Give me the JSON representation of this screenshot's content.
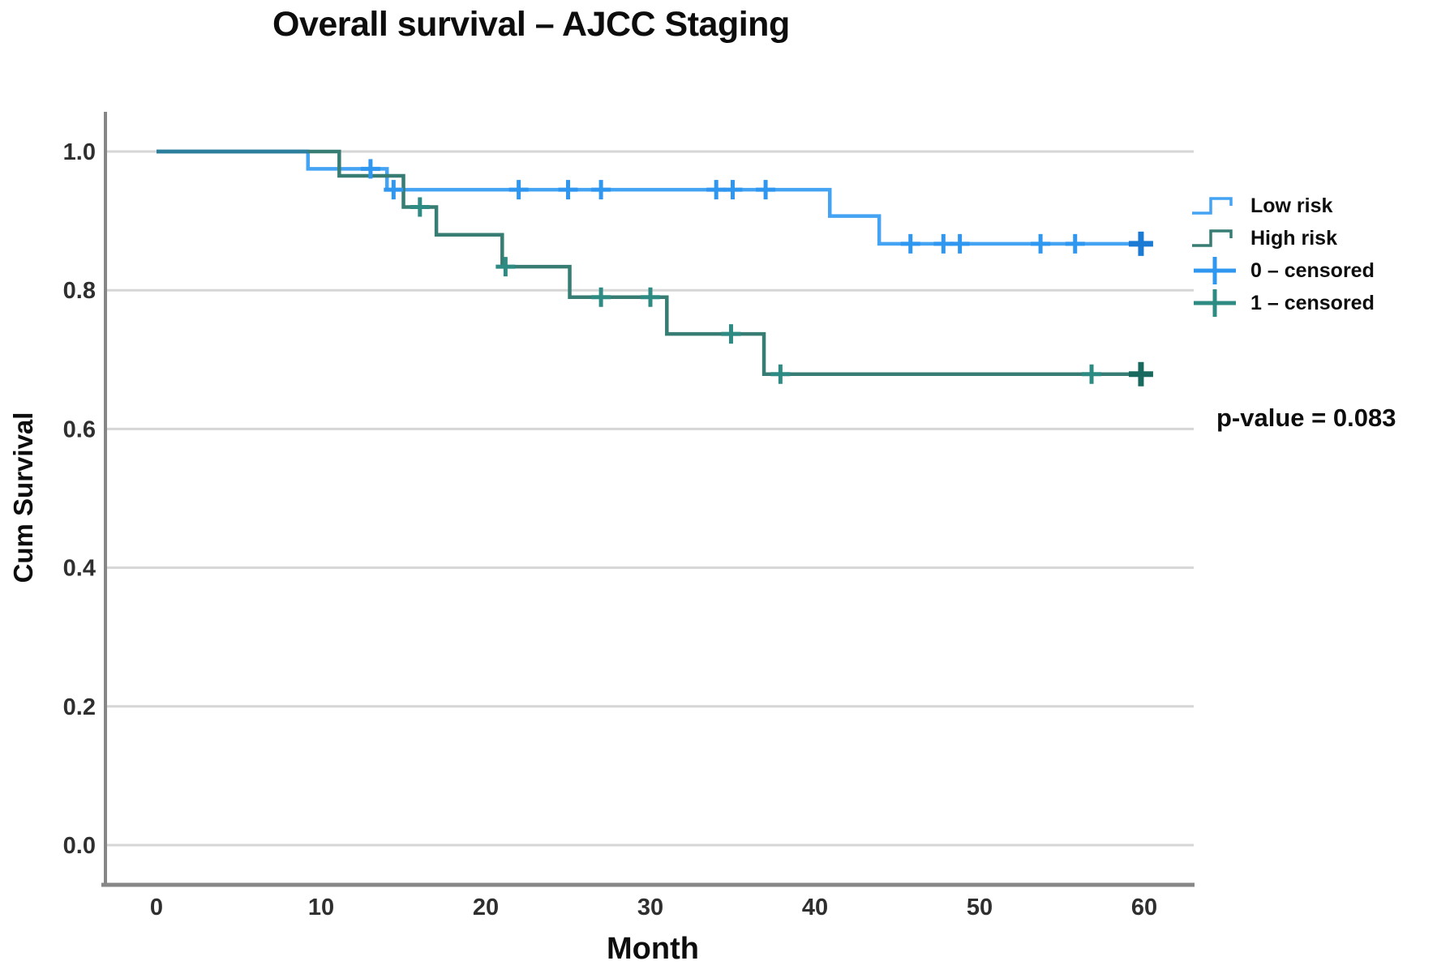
{
  "title": "Overall survival – AJCC Staging",
  "p_value_label": "p-value = 0.083",
  "axes": {
    "x_title": "Month",
    "y_title": "Cum Survival"
  },
  "legend": {
    "items": [
      {
        "label": "Low risk",
        "marker": "step-line",
        "color": "#44a3f2"
      },
      {
        "label": "High risk",
        "marker": "step-line",
        "color": "#377d74"
      },
      {
        "label": "0 – censored",
        "marker": "plus-cross",
        "color": "#2f97ef"
      },
      {
        "label": "1 – censored",
        "marker": "plus-cross",
        "color": "#2d8b84"
      }
    ]
  },
  "chart_data": {
    "type": "line",
    "subtype": "kaplan-meier-step",
    "title": "Overall survival – AJCC Staging",
    "xlabel": "Month",
    "ylabel": "Cum Survival",
    "xlim": [
      -3,
      63
    ],
    "ylim": [
      -0.06,
      1.06
    ],
    "x_ticks": [
      0,
      10,
      20,
      30,
      40,
      50,
      60
    ],
    "y_ticks": [
      0.0,
      0.2,
      0.4,
      0.6,
      0.8,
      1.0
    ],
    "y_tick_labels": [
      "0.0",
      "0.2",
      "0.4",
      "0.6",
      "0.8",
      "1.0"
    ],
    "grid": "horizontal",
    "legend_position": "right",
    "annotation": "p-value = 0.083",
    "style": {
      "grid_color": "#d6d6d6",
      "axis_color": "#868686",
      "tick_color": "#2f2f2f"
    },
    "series": [
      {
        "name": "Low risk",
        "color": "#44a3f2",
        "censor_color": "#2f97ef",
        "censor_final_color": "#1a7ad4",
        "steps": [
          [
            0,
            1.0
          ],
          [
            9.2,
            0.975
          ],
          [
            14,
            0.945
          ],
          [
            40.9,
            0.907
          ],
          [
            43.9,
            0.867
          ]
        ],
        "end_x": 60.2,
        "censors": [
          [
            13,
            0.975
          ],
          [
            14.4,
            0.945
          ],
          [
            22,
            0.945
          ],
          [
            25,
            0.945
          ],
          [
            27,
            0.945
          ],
          [
            34,
            0.945
          ],
          [
            35,
            0.945
          ],
          [
            37,
            0.945
          ],
          [
            45.8,
            0.867
          ],
          [
            47.8,
            0.867
          ],
          [
            48.8,
            0.867
          ],
          [
            53.7,
            0.867
          ],
          [
            55.8,
            0.867
          ],
          [
            59.8,
            0.867,
            1
          ]
        ]
      },
      {
        "name": "High risk",
        "color": "#377d74",
        "censor_color": "#2d8b84",
        "censor_final_color": "#19695f",
        "steps": [
          [
            0,
            1.0
          ],
          [
            11.1,
            0.965
          ],
          [
            15,
            0.92
          ],
          [
            17,
            0.88
          ],
          [
            21,
            0.834
          ],
          [
            25.1,
            0.79
          ],
          [
            31,
            0.737
          ],
          [
            36.9,
            0.679
          ]
        ],
        "end_x": 60.2,
        "censors": [
          [
            16,
            0.92
          ],
          [
            21.2,
            0.834
          ],
          [
            27,
            0.79
          ],
          [
            30,
            0.79
          ],
          [
            34.9,
            0.737
          ],
          [
            37.9,
            0.679
          ],
          [
            56.8,
            0.679
          ],
          [
            59.8,
            0.679,
            1
          ]
        ]
      }
    ],
    "overlap_segment": {
      "from_x": 0,
      "to_x": 9.2,
      "y": 1.0,
      "color": "#2b7f9d"
    }
  }
}
